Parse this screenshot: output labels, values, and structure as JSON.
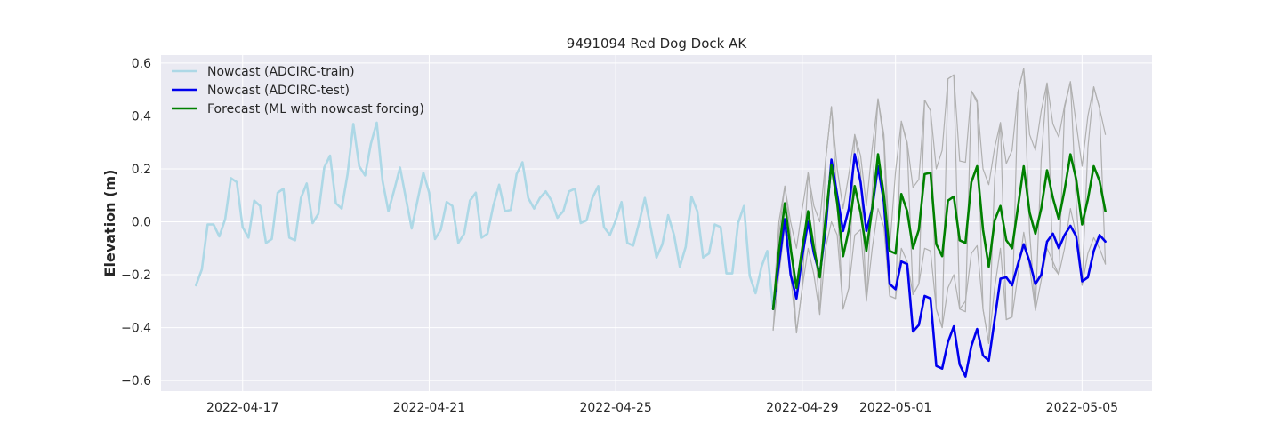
{
  "chart_data": {
    "type": "line",
    "title": "9491094 Red Dog Dock AK",
    "xlabel": "",
    "ylabel": "Elevation (m)",
    "xlim": [
      "2022-04-15T06:00",
      "2022-05-06T12:00"
    ],
    "ylim": [
      -0.64,
      0.63
    ],
    "xticks": [
      "2022-04-17",
      "2022-04-21",
      "2022-04-25",
      "2022-04-29",
      "2022-05-01",
      "2022-05-05"
    ],
    "yticks": [
      -0.6,
      -0.4,
      -0.2,
      0.0,
      0.2,
      0.4,
      0.6
    ],
    "ytick_labels": [
      "−0.6",
      "−0.4",
      "−0.2",
      "0.0",
      "0.2",
      "0.4",
      "0.6"
    ],
    "grid": true,
    "legend_position": "upper-left",
    "series": [
      {
        "name": "Nowcast (ADCIRC-train)",
        "color": "#add8e6",
        "values": [
          -0.24,
          -0.18,
          -0.01,
          -0.01,
          -0.055,
          0.01,
          0.165,
          0.15,
          -0.02,
          -0.06,
          0.08,
          0.06,
          -0.08,
          -0.065,
          0.11,
          0.125,
          -0.06,
          -0.07,
          0.09,
          0.145,
          -0.005,
          0.03,
          0.205,
          0.25,
          0.07,
          0.05,
          0.18,
          0.37,
          0.21,
          0.175,
          0.295,
          0.375,
          0.155,
          0.04,
          0.12,
          0.205,
          0.09,
          -0.025,
          0.08,
          0.185,
          0.11,
          -0.065,
          -0.03,
          0.075,
          0.06,
          -0.08,
          -0.045,
          0.08,
          0.11,
          -0.06,
          -0.045,
          0.06,
          0.14,
          0.04,
          0.045,
          0.18,
          0.225,
          0.09,
          0.05,
          0.09,
          0.115,
          0.08,
          0.015,
          0.04,
          0.115,
          0.125,
          -0.005,
          0.005,
          0.09,
          0.135,
          -0.02,
          -0.05,
          0.005,
          0.075,
          -0.08,
          -0.09,
          -0.005,
          0.09,
          -0.02,
          -0.135,
          -0.085,
          0.025,
          -0.05,
          -0.17,
          -0.095,
          0.095,
          0.04,
          -0.135,
          -0.12,
          -0.01,
          -0.02,
          -0.195,
          -0.195,
          -0.005,
          0.06,
          -0.205,
          -0.27,
          -0.17,
          -0.11,
          -0.33
        ]
      },
      {
        "name": "Nowcast (ADCIRC-test)",
        "color": "#0000ee",
        "values": [
          -0.33,
          -0.16,
          0.01,
          -0.2,
          -0.29,
          -0.13,
          0.0,
          -0.12,
          -0.2,
          -0.03,
          0.235,
          0.1,
          -0.035,
          0.05,
          0.255,
          0.15,
          -0.035,
          0.05,
          0.21,
          0.075,
          -0.235,
          -0.255,
          -0.15,
          -0.16,
          -0.415,
          -0.39,
          -0.28,
          -0.29,
          -0.545,
          -0.555,
          -0.455,
          -0.395,
          -0.54,
          -0.585,
          -0.47,
          -0.405,
          -0.505,
          -0.525,
          -0.37,
          -0.215,
          -0.21,
          -0.24,
          -0.16,
          -0.085,
          -0.15,
          -0.235,
          -0.2,
          -0.075,
          -0.045,
          -0.1,
          -0.05,
          -0.015,
          -0.055,
          -0.225,
          -0.21,
          -0.11,
          -0.05,
          -0.075
        ]
      },
      {
        "name": "Forecast (ML with nowcast forcing)",
        "color": "#008000",
        "values": [
          -0.33,
          -0.11,
          0.07,
          -0.1,
          -0.25,
          -0.1,
          0.04,
          -0.1,
          -0.21,
          0.01,
          0.215,
          0.07,
          -0.13,
          -0.03,
          0.135,
          0.035,
          -0.11,
          0.05,
          0.255,
          0.1,
          -0.11,
          -0.12,
          0.105,
          0.04,
          -0.1,
          -0.03,
          0.18,
          0.185,
          -0.085,
          -0.13,
          0.08,
          0.095,
          -0.07,
          -0.08,
          0.15,
          0.21,
          -0.03,
          -0.17,
          0.005,
          0.06,
          -0.07,
          -0.1,
          0.055,
          0.21,
          0.035,
          -0.045,
          0.05,
          0.195,
          0.09,
          0.01,
          0.12,
          0.255,
          0.16,
          -0.01,
          0.085,
          0.21,
          0.155,
          0.04
        ]
      },
      {
        "name": "",
        "color": "#b0b0b0",
        "values": [
          -0.41,
          -0.05,
          0.135,
          -0.05,
          -0.42,
          -0.25,
          0.185,
          0.0,
          -0.35,
          0.23,
          0.435,
          0.07,
          -0.33,
          -0.25,
          0.33,
          0.19,
          -0.3,
          0.115,
          0.465,
          0.3,
          -0.28,
          -0.29,
          0.38,
          0.29,
          -0.275,
          -0.235,
          0.46,
          0.42,
          -0.33,
          -0.4,
          0.54,
          0.555,
          -0.33,
          -0.34,
          0.495,
          0.45,
          -0.33,
          -0.46,
          0.165,
          0.375,
          -0.37,
          -0.36,
          0.49,
          0.58,
          -0.04,
          -0.335,
          0.24,
          0.525,
          -0.17,
          -0.2,
          0.43,
          0.53,
          0.07,
          -0.24,
          0.28,
          0.51,
          0.43,
          -0.16
        ]
      },
      {
        "name": "",
        "color": "#b0b0b0",
        "values": [
          -0.33,
          0.0,
          0.135,
          0.0,
          -0.1,
          0.05,
          0.185,
          0.06,
          0.0,
          0.23,
          0.435,
          0.2,
          0.05,
          0.18,
          0.33,
          0.25,
          0.06,
          0.28,
          0.465,
          0.33,
          -0.1,
          0.19,
          0.38,
          0.3,
          0.13,
          0.16,
          0.46,
          0.42,
          0.2,
          0.27,
          0.54,
          0.555,
          0.23,
          0.225,
          0.495,
          0.46,
          0.2,
          0.14,
          0.28,
          0.375,
          0.22,
          0.27,
          0.49,
          0.58,
          0.33,
          0.27,
          0.42,
          0.525,
          0.37,
          0.32,
          0.44,
          0.53,
          0.37,
          0.21,
          0.4,
          0.51,
          0.43,
          0.33
        ]
      },
      {
        "name": "",
        "color": "#b0b0b0",
        "values": [
          -0.41,
          -0.2,
          -0.02,
          -0.2,
          -0.42,
          -0.25,
          -0.1,
          -0.2,
          -0.35,
          -0.1,
          0.0,
          -0.05,
          -0.33,
          -0.25,
          -0.05,
          -0.03,
          -0.3,
          -0.1,
          0.05,
          -0.02,
          -0.28,
          -0.29,
          -0.1,
          -0.15,
          -0.275,
          -0.235,
          -0.1,
          -0.11,
          -0.33,
          -0.4,
          -0.25,
          -0.2,
          -0.33,
          -0.3,
          -0.12,
          -0.09,
          -0.33,
          -0.46,
          -0.25,
          -0.1,
          -0.37,
          -0.36,
          -0.2,
          -0.04,
          -0.17,
          -0.335,
          -0.22,
          -0.1,
          -0.15,
          -0.2,
          -0.1,
          0.05,
          -0.05,
          -0.24,
          -0.12,
          -0.06,
          -0.1,
          -0.16
        ]
      }
    ]
  }
}
